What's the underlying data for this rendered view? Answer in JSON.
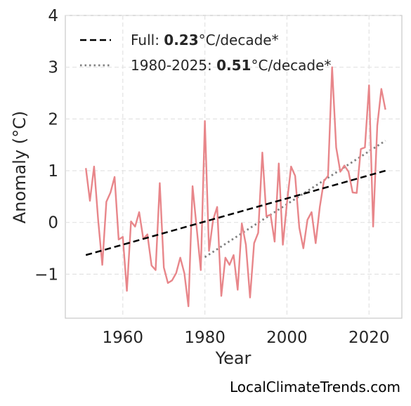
{
  "chart_data": {
    "type": "line",
    "xlabel": "Year",
    "ylabel": "Anomaly (°C)",
    "xlim": [
      1946,
      2028
    ],
    "ylim": [
      -1.85,
      4
    ],
    "xticks": [
      1960,
      1980,
      2000,
      2020
    ],
    "yticks": [
      -1,
      0,
      1,
      2,
      3,
      4
    ],
    "ytick_labels": [
      "−1",
      "0",
      "1",
      "2",
      "3",
      "4"
    ],
    "grid": true,
    "legend_position": "top-left",
    "colors": {
      "series": "#e8868a",
      "trend_full": "#000000",
      "trend_recent": "#808080"
    },
    "series": [
      {
        "x": [
          1951,
          1952,
          1953,
          1954,
          1955,
          1956,
          1957,
          1958,
          1959,
          1960,
          1961,
          1962,
          1963,
          1964,
          1965,
          1966,
          1967,
          1968,
          1969,
          1970,
          1971,
          1972,
          1973,
          1974,
          1975,
          1976,
          1977,
          1978,
          1979,
          1980,
          1981,
          1982,
          1983,
          1984,
          1985,
          1986,
          1987,
          1988,
          1989,
          1990,
          1991,
          1992,
          1993,
          1994,
          1995,
          1996,
          1997,
          1998,
          1999,
          2000,
          2001,
          2002,
          2003,
          2004,
          2005,
          2006,
          2007,
          2008,
          2009,
          2010,
          2011,
          2012,
          2013,
          2014,
          2015,
          2016,
          2017,
          2018,
          2019,
          2020,
          2021,
          2022,
          2023,
          2024
        ],
        "values": [
          1.05,
          0.42,
          1.08,
          0.05,
          -0.82,
          0.4,
          0.58,
          0.88,
          -0.33,
          -0.28,
          -1.32,
          0.02,
          -0.08,
          0.2,
          -0.32,
          -0.23,
          -0.83,
          -0.92,
          0.76,
          -0.87,
          -1.17,
          -1.12,
          -0.98,
          -0.68,
          -0.98,
          -1.62,
          0.7,
          -0.1,
          -0.92,
          1.96,
          -0.55,
          0.05,
          0.3,
          -1.42,
          -0.68,
          -0.82,
          -0.63,
          -1.3,
          -0.02,
          -0.43,
          -1.45,
          -0.4,
          -0.2,
          1.35,
          0.12,
          0.15,
          -0.37,
          1.14,
          -0.43,
          0.37,
          1.08,
          0.9,
          -0.1,
          -0.5,
          0.05,
          0.2,
          -0.4,
          0.3,
          0.8,
          0.9,
          3.0,
          1.45,
          0.98,
          1.1,
          0.98,
          0.58,
          0.57,
          1.42,
          1.45,
          2.65,
          -0.08,
          1.87,
          2.58,
          2.18
        ]
      }
    ],
    "trend_lines": [
      {
        "style": "dashed",
        "x": [
          1951,
          2024
        ],
        "y": [
          -0.63,
          1.0
        ],
        "label_prefix": "Full: ",
        "rate": "0.23",
        "label_suffix": "°C/decade*"
      },
      {
        "style": "dotted",
        "x": [
          1980,
          2024
        ],
        "y": [
          -0.67,
          1.58
        ],
        "label_prefix": "1980-2025: ",
        "rate": "0.51",
        "label_suffix": "°C/decade*"
      }
    ]
  },
  "watermark": "LocalClimateTrends.com"
}
